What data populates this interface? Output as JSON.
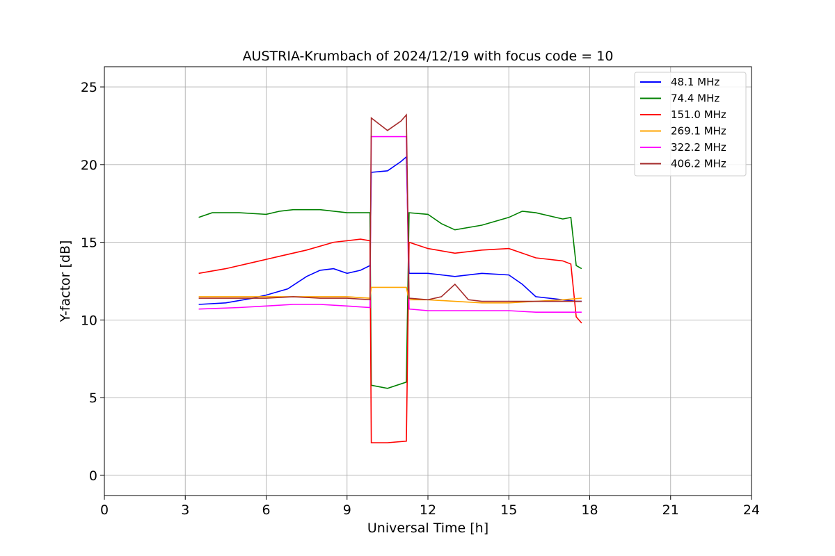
{
  "chart_data": {
    "type": "line",
    "title": "AUSTRIA-Krumbach of 2024/12/19 with focus code = 10",
    "xlabel": "Universal Time [h]",
    "ylabel": "Y-factor [dB]",
    "xlim": [
      0,
      24
    ],
    "ylim": [
      -1.3,
      26.3
    ],
    "xticks": [
      0,
      3,
      6,
      9,
      12,
      15,
      18,
      21,
      24
    ],
    "yticks": [
      0,
      5,
      10,
      15,
      20,
      25
    ],
    "grid": true,
    "legend_position": "top-right",
    "series": [
      {
        "name": " 48.1 MHz",
        "color": "#0000ff",
        "x": [
          3.5,
          4.5,
          5.5,
          6.0,
          6.8,
          7.5,
          8.0,
          8.5,
          9.0,
          9.5,
          9.85,
          9.9,
          10.5,
          11.0,
          11.2,
          11.3,
          12.0,
          13.0,
          14.0,
          15.0,
          15.5,
          16.0,
          17.0,
          17.5,
          17.7
        ],
        "values": [
          11.0,
          11.1,
          11.4,
          11.6,
          12.0,
          12.8,
          13.2,
          13.3,
          13.0,
          13.2,
          13.5,
          19.5,
          19.6,
          20.2,
          20.5,
          13.0,
          13.0,
          12.8,
          13.0,
          12.9,
          12.3,
          11.5,
          11.3,
          11.2,
          11.2
        ]
      },
      {
        "name": " 74.4 MHz",
        "color": "#008000",
        "x": [
          3.5,
          4.0,
          5.0,
          6.0,
          6.5,
          7.0,
          8.0,
          9.0,
          9.85,
          9.9,
          10.5,
          11.2,
          11.3,
          12.0,
          12.5,
          13.0,
          14.0,
          15.0,
          15.5,
          16.0,
          17.0,
          17.3,
          17.5,
          17.7
        ],
        "values": [
          16.6,
          16.9,
          16.9,
          16.8,
          17.0,
          17.1,
          17.1,
          16.9,
          16.9,
          5.8,
          5.6,
          6.0,
          16.9,
          16.8,
          16.2,
          15.8,
          16.1,
          16.6,
          17.0,
          16.9,
          16.5,
          16.6,
          13.5,
          13.3
        ]
      },
      {
        "name": " 151.0 MHz",
        "color": "#ff0000",
        "x": [
          3.5,
          4.5,
          5.5,
          6.5,
          7.5,
          8.5,
          9.5,
          9.85,
          9.9,
          10.5,
          11.2,
          11.3,
          12.0,
          13.0,
          14.0,
          15.0,
          16.0,
          17.0,
          17.3,
          17.5,
          17.7
        ],
        "values": [
          13.0,
          13.3,
          13.7,
          14.1,
          14.5,
          15.0,
          15.2,
          15.1,
          2.1,
          2.1,
          2.2,
          15.0,
          14.6,
          14.3,
          14.5,
          14.6,
          14.0,
          13.8,
          13.6,
          10.2,
          9.8
        ]
      },
      {
        "name": " 269.1 MHz",
        "color": "#ffa500",
        "x": [
          3.5,
          5.0,
          6.0,
          7.0,
          8.0,
          9.0,
          9.85,
          9.9,
          10.5,
          11.2,
          11.3,
          12.0,
          13.0,
          14.0,
          15.0,
          16.0,
          17.0,
          17.7
        ],
        "values": [
          11.5,
          11.5,
          11.5,
          11.5,
          11.5,
          11.5,
          11.4,
          12.1,
          12.1,
          12.1,
          11.3,
          11.3,
          11.2,
          11.1,
          11.1,
          11.2,
          11.3,
          11.4
        ]
      },
      {
        "name": " 322.2 MHz",
        "color": "#ff00ff",
        "x": [
          3.5,
          5.0,
          6.0,
          7.0,
          8.0,
          9.0,
          9.85,
          9.9,
          10.5,
          11.2,
          11.3,
          12.0,
          13.0,
          14.0,
          15.0,
          16.0,
          17.0,
          17.7
        ],
        "values": [
          10.7,
          10.8,
          10.9,
          11.0,
          11.0,
          10.9,
          10.8,
          21.8,
          21.8,
          21.8,
          10.7,
          10.6,
          10.6,
          10.6,
          10.6,
          10.5,
          10.5,
          10.5
        ]
      },
      {
        "name": " 406.2 MHz",
        "color": "#a52a2a",
        "x": [
          3.5,
          5.0,
          6.0,
          7.0,
          8.0,
          9.0,
          9.85,
          9.9,
          10.5,
          11.0,
          11.2,
          11.3,
          12.0,
          12.5,
          13.0,
          13.5,
          14.0,
          15.0,
          16.0,
          17.0,
          17.7
        ],
        "values": [
          11.4,
          11.4,
          11.4,
          11.5,
          11.4,
          11.4,
          11.3,
          23.0,
          22.2,
          22.8,
          23.2,
          11.4,
          11.3,
          11.5,
          12.3,
          11.3,
          11.2,
          11.2,
          11.2,
          11.2,
          11.2
        ]
      }
    ]
  }
}
